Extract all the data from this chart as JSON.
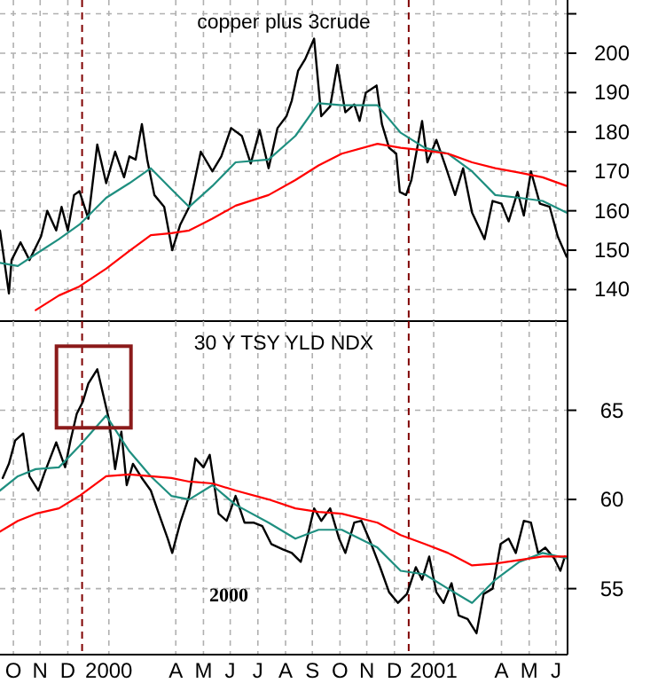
{
  "chart_data": [
    {
      "type": "line",
      "title": "copper plus 3crude",
      "xlim": [
        "1999-10-01",
        "2001-06-28"
      ],
      "ylim": [
        132,
        213.5
      ],
      "yticks": [
        140,
        150,
        160,
        170,
        180,
        190,
        200,
        {
          "value": 210,
          "label": null
        }
      ],
      "xticks": [
        {
          "value": "1999-10-16",
          "label": null
        },
        {
          "value": "1999-11-15",
          "label": null
        },
        {
          "value": "1999-12-16",
          "label": null
        },
        {
          "value": "2000-01-31",
          "label": null
        },
        {
          "value": "2000-04-15",
          "label": null
        },
        {
          "value": "2000-05-16",
          "label": null
        },
        {
          "value": "2000-06-15",
          "label": null
        },
        {
          "value": "2000-07-16",
          "label": null
        },
        {
          "value": "2000-08-16",
          "label": null
        },
        {
          "value": "2000-09-15",
          "label": null
        },
        {
          "value": "2000-10-16",
          "label": null
        },
        {
          "value": "2000-11-15",
          "label": null
        },
        {
          "value": "2000-12-16",
          "label": null
        },
        {
          "value": "2001-01-29",
          "label": null
        },
        {
          "value": "2001-04-15",
          "label": null
        },
        {
          "value": "2001-05-16",
          "label": null
        },
        {
          "value": "2001-06-15",
          "label": null
        }
      ],
      "tick_labels": "y",
      "grid": true,
      "line_style": "solid",
      "ref_lines": [
        {
          "axis": "x",
          "value": "2000-01-01",
          "color": "#800000",
          "line_style": "dashed"
        },
        {
          "axis": "x",
          "value": "2001-01-01",
          "color": "#800000",
          "line_style": "dashed"
        }
      ],
      "x": [
        "1999-10-01",
        "1999-10-11",
        "1999-10-14",
        "1999-10-24",
        "1999-11-03",
        "1999-11-16",
        "1999-11-23",
        "1999-12-03",
        "1999-12-09",
        "1999-12-16",
        "1999-12-23",
        "1999-12-29",
        "2000-01-08",
        "2000-01-18",
        "2000-01-28",
        "2000-02-07",
        "2000-02-17",
        "2000-02-23",
        "2000-03-01",
        "2000-03-08",
        "2000-03-14",
        "2000-03-22",
        "2000-04-02",
        "2000-04-11",
        "2000-04-20",
        "2000-04-30",
        "2000-05-13",
        "2000-05-26",
        "2000-06-05",
        "2000-06-16",
        "2000-06-28",
        "2000-07-08",
        "2000-07-18",
        "2000-07-28",
        "2000-08-07",
        "2000-08-17",
        "2000-08-23",
        "2000-08-30",
        "2000-09-07",
        "2000-09-17",
        "2000-09-25",
        "2000-10-05",
        "2000-10-13",
        "2000-10-22",
        "2000-11-01",
        "2000-11-07",
        "2000-11-14",
        "2000-11-26",
        "2000-12-02",
        "2000-12-10",
        "2000-12-18",
        "2000-12-22",
        "2000-12-29",
        "2001-01-04",
        "2001-01-16",
        "2001-01-22",
        "2001-02-01",
        "2001-02-11",
        "2001-02-22",
        "2001-03-03",
        "2001-03-13",
        "2001-03-27",
        "2001-04-05",
        "2001-04-15",
        "2001-04-23",
        "2001-05-03",
        "2001-05-10",
        "2001-05-18",
        "2001-05-28",
        "2001-06-08",
        "2001-06-17",
        "2001-06-27"
      ],
      "series": [
        {
          "color": "#000000",
          "values": [
            155,
            139,
            147.5,
            152,
            147.5,
            153.5,
            160,
            155,
            161,
            155,
            164,
            165,
            158,
            176.8,
            167,
            175,
            168.5,
            173.8,
            173,
            182,
            173,
            164,
            161,
            150,
            156.5,
            161,
            175,
            170,
            173.8,
            181,
            179,
            172,
            180.5,
            170.8,
            181,
            184,
            188,
            195.5,
            198.5,
            203.7,
            184,
            186.5,
            197,
            185,
            187,
            182.8,
            190,
            191.8,
            182,
            176,
            174.5,
            164.8,
            164,
            167.8,
            182.8,
            172.3,
            178,
            171.5,
            164,
            170.8,
            159.5,
            152.8,
            162.5,
            161.8,
            157.3,
            164.8,
            158.8,
            170,
            161.8,
            161,
            153.5,
            148.3
          ]
        },
        {
          "color": "#1f8f80",
          "x": [
            "1999-10-01",
            "1999-10-21",
            "1999-11-10",
            "1999-12-06",
            "1999-12-29",
            "2000-01-28",
            "2000-02-23",
            "2000-03-18",
            "2000-04-10",
            "2000-04-30",
            "2000-05-26",
            "2000-06-21",
            "2000-07-28",
            "2000-08-27",
            "2000-09-22",
            "2000-10-18",
            "2000-11-27",
            "2000-12-23",
            "2001-01-19",
            "2001-02-14",
            "2001-03-13",
            "2001-04-08",
            "2001-05-05",
            "2001-05-31",
            "2001-06-27"
          ],
          "values": [
            146.8,
            146,
            149,
            152.8,
            156.5,
            163.3,
            167,
            170.8,
            165.5,
            161,
            166.3,
            172.3,
            173,
            179,
            187.3,
            186.8,
            186.8,
            179.8,
            176,
            174.5,
            170,
            164,
            163.3,
            162.5,
            159.5
          ]
        },
        {
          "color": "#ff0000",
          "x": [
            "1999-11-10",
            "1999-12-06",
            "1999-12-29",
            "2000-01-28",
            "2000-02-23",
            "2000-03-18",
            "2000-04-10",
            "2000-04-30",
            "2000-05-26",
            "2000-06-21",
            "2000-07-28",
            "2000-08-27",
            "2000-09-22",
            "2000-10-18",
            "2000-11-27",
            "2000-12-23",
            "2001-01-19",
            "2001-02-14",
            "2001-03-13",
            "2001-04-08",
            "2001-05-05",
            "2001-05-31",
            "2001-06-27"
          ],
          "values": [
            134.8,
            138.5,
            140.8,
            145.3,
            149.8,
            153.8,
            154.3,
            155,
            158,
            161.3,
            164,
            167.8,
            171.5,
            174.5,
            177,
            176,
            175.3,
            174.5,
            172.3,
            170.8,
            169.7,
            168.5,
            166.3
          ]
        }
      ]
    },
    {
      "type": "line",
      "title": "30 Y TSY YLD NDX",
      "annotations": [
        "2000"
      ],
      "xlim": [
        "1999-10-01",
        "2001-06-28"
      ],
      "ylim": [
        51.3,
        70
      ],
      "yticks": [
        55,
        60,
        65
      ],
      "xticks": [
        {
          "value": "1999-10-16",
          "label": "O"
        },
        {
          "value": "1999-11-15",
          "label": "N"
        },
        {
          "value": "1999-12-16",
          "label": "D"
        },
        {
          "value": "2000-01-31",
          "label": "2000"
        },
        {
          "value": "2000-04-15",
          "label": "A"
        },
        {
          "value": "2000-05-16",
          "label": "M"
        },
        {
          "value": "2000-06-15",
          "label": "J"
        },
        {
          "value": "2000-07-16",
          "label": "J"
        },
        {
          "value": "2000-08-16",
          "label": "A"
        },
        {
          "value": "2000-09-15",
          "label": "S"
        },
        {
          "value": "2000-10-16",
          "label": "O"
        },
        {
          "value": "2000-11-15",
          "label": "N"
        },
        {
          "value": "2000-12-16",
          "label": "D"
        },
        {
          "value": "2001-01-29",
          "label": "2001"
        },
        {
          "value": "2001-04-15",
          "label": "A"
        },
        {
          "value": "2001-05-16",
          "label": "M"
        },
        {
          "value": "2001-06-15",
          "label": "J"
        }
      ],
      "grid": true,
      "line_style": "solid",
      "ref_lines": [
        {
          "axis": "x",
          "value": "2000-01-01",
          "color": "#800000",
          "line_style": "dashed"
        },
        {
          "axis": "x",
          "value": "2001-01-01",
          "color": "#800000",
          "line_style": "dashed"
        }
      ],
      "x": [
        "1999-10-04",
        "1999-10-11",
        "1999-10-18",
        "1999-10-27",
        "1999-11-03",
        "1999-11-13",
        "1999-11-20",
        "1999-12-03",
        "1999-12-13",
        "1999-12-19",
        "1999-12-26",
        "2000-01-02",
        "2000-01-08",
        "2000-01-18",
        "2000-01-25",
        "2000-01-31",
        "2000-02-07",
        "2000-02-14",
        "2000-02-20",
        "2000-02-27",
        "2000-03-08",
        "2000-03-18",
        "2000-03-27",
        "2000-04-06",
        "2000-04-11",
        "2000-04-20",
        "2000-04-30",
        "2000-05-07",
        "2000-05-16",
        "2000-05-23",
        "2000-06-02",
        "2000-06-11",
        "2000-06-21",
        "2000-07-01",
        "2000-07-11",
        "2000-07-21",
        "2000-07-31",
        "2000-08-13",
        "2000-08-23",
        "2000-09-02",
        "2000-09-09",
        "2000-09-17",
        "2000-09-25",
        "2000-10-05",
        "2000-10-15",
        "2000-10-22",
        "2000-11-01",
        "2000-11-09",
        "2000-11-20",
        "2000-11-30",
        "2000-12-10",
        "2000-12-20",
        "2000-12-30",
        "2001-01-09",
        "2001-01-16",
        "2001-01-24",
        "2001-02-01",
        "2001-02-09",
        "2001-02-18",
        "2001-02-26",
        "2001-03-08",
        "2001-03-18",
        "2001-03-26",
        "2001-04-05",
        "2001-04-14",
        "2001-04-23",
        "2001-05-01",
        "2001-05-10",
        "2001-05-18",
        "2001-05-26",
        "2001-06-03",
        "2001-06-13",
        "2001-06-20",
        "2001-06-25"
      ],
      "series": [
        {
          "color": "#000000",
          "values": [
            61.2,
            62,
            63.3,
            63.7,
            61.3,
            60.5,
            61.5,
            63.2,
            61.8,
            63.3,
            64.8,
            65.5,
            66.5,
            67.3,
            65.8,
            64.5,
            61.7,
            63.8,
            60.8,
            62,
            61.2,
            60.5,
            59.2,
            57.8,
            57,
            58.7,
            60.2,
            62.3,
            61.8,
            62.5,
            59.2,
            58.8,
            60.2,
            58.7,
            58.7,
            58.5,
            57.5,
            57.2,
            57,
            56.5,
            57.8,
            59.5,
            58.8,
            59.5,
            57.8,
            57,
            58.7,
            58.8,
            57.5,
            56.2,
            54.8,
            54.2,
            54.7,
            56.2,
            55.5,
            56.8,
            54.8,
            54.2,
            55.3,
            53.5,
            53.3,
            52.5,
            54.7,
            55,
            57.5,
            57.8,
            57,
            58.8,
            58.7,
            57,
            57.3,
            56.7,
            56,
            56.8
          ]
        },
        {
          "color": "#1f8f80",
          "x": [
            "1999-10-01",
            "1999-10-21",
            "1999-11-10",
            "1999-12-06",
            "1999-12-29",
            "2000-01-28",
            "2000-02-23",
            "2000-03-18",
            "2000-04-10",
            "2000-04-30",
            "2000-05-26",
            "2000-06-21",
            "2000-07-28",
            "2000-08-27",
            "2000-09-22",
            "2000-10-18",
            "2000-11-27",
            "2000-12-23",
            "2001-01-19",
            "2001-02-14",
            "2001-03-13",
            "2001-04-08",
            "2001-05-05",
            "2001-05-31",
            "2001-06-27"
          ],
          "values": [
            60.5,
            61.3,
            61.7,
            61.8,
            63,
            64.7,
            62.7,
            61.3,
            60.2,
            60,
            60.8,
            59.7,
            58.7,
            57.8,
            58.3,
            58.3,
            57.3,
            56,
            55.8,
            55,
            54.2,
            55.5,
            56.5,
            57,
            56.7
          ]
        },
        {
          "color": "#ff0000",
          "x": [
            "1999-10-01",
            "1999-10-21",
            "1999-11-10",
            "1999-12-06",
            "1999-12-29",
            "2000-01-28",
            "2000-02-23",
            "2000-03-18",
            "2000-04-10",
            "2000-04-30",
            "2000-05-26",
            "2000-06-21",
            "2000-07-28",
            "2000-08-27",
            "2000-09-22",
            "2000-10-18",
            "2000-11-27",
            "2000-12-23",
            "2001-01-19",
            "2001-02-14",
            "2001-03-13",
            "2001-04-08",
            "2001-05-05",
            "2001-05-31",
            "2001-06-27"
          ],
          "values": [
            58.2,
            58.8,
            59.2,
            59.5,
            60.2,
            61.3,
            61.4,
            61.3,
            61.2,
            61,
            60.9,
            60.5,
            60,
            59.5,
            59.3,
            59.2,
            58.7,
            58,
            57.5,
            57,
            56.3,
            56.4,
            56.6,
            56.8,
            56.8
          ]
        }
      ]
    }
  ]
}
